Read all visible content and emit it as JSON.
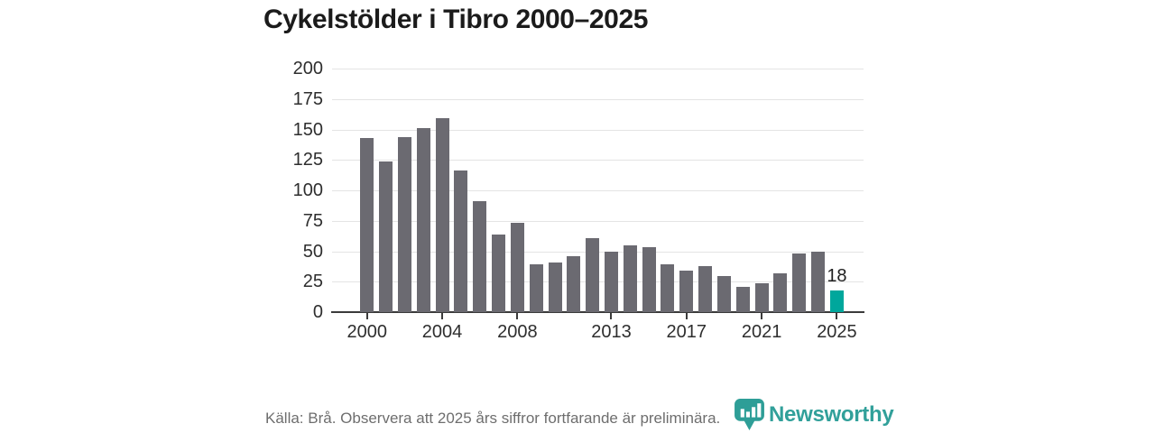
{
  "chart": {
    "title": "Cykelstölder i Tibro 2000–2025"
  },
  "chart_data": {
    "type": "bar",
    "title": "Cykelstölder i Tibro 2000–2025",
    "x": [
      2000,
      2001,
      2002,
      2003,
      2004,
      2005,
      2006,
      2007,
      2008,
      2009,
      2010,
      2011,
      2012,
      2013,
      2014,
      2015,
      2016,
      2017,
      2018,
      2019,
      2020,
      2021,
      2022,
      2023,
      2024,
      2025
    ],
    "values": [
      143,
      124,
      144,
      151,
      159,
      116,
      91,
      64,
      73,
      39,
      41,
      46,
      61,
      50,
      55,
      53,
      39,
      34,
      38,
      30,
      21,
      24,
      32,
      48,
      50,
      18
    ],
    "x_tick_labels": [
      "2000",
      "2004",
      "2008",
      "2013",
      "2017",
      "2021",
      "2025"
    ],
    "y_ticks": [
      0,
      25,
      50,
      75,
      100,
      125,
      150,
      175,
      200
    ],
    "ylim": [
      0,
      200
    ],
    "xlabel": "",
    "ylabel": "",
    "grid": true,
    "legend": "none",
    "bar_color": "#6b6a71",
    "highlight_index": 25,
    "highlight_color": "#00a79c",
    "annotation": {
      "index": 25,
      "text": "18"
    }
  },
  "footer": {
    "source": "Källa: Brå. Observera att 2025 års siffror fortfarande är preliminära.",
    "logo_text": "Newsworthy",
    "logo_color": "#31a09a",
    "logo_mark_color": "#2e9e97"
  }
}
